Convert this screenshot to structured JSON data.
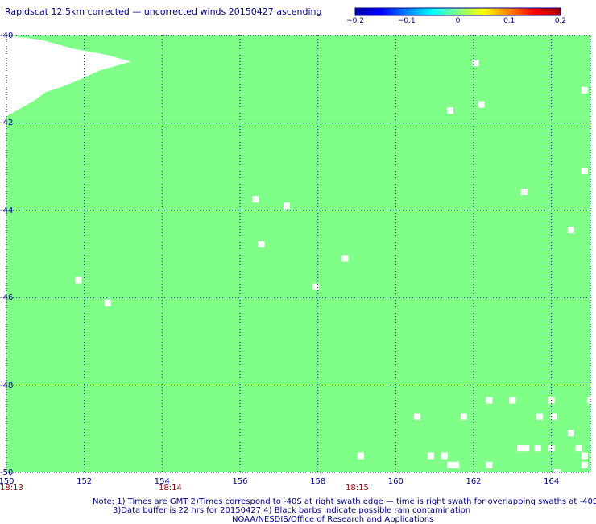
{
  "chart_data": {
    "type": "heatmap",
    "title": "Rapidscat 12.5km corrected — uncorrected winds 20150427 ascending",
    "colorbar": {
      "colors": [
        "#0000aa",
        "#0000ff",
        "#0080ff",
        "#00ffff",
        "#80ff80",
        "#ffff00",
        "#ff8000",
        "#ff0000",
        "#aa0000"
      ],
      "tick_labels": [
        "−0.2",
        "−0.1",
        "0",
        "0.1",
        "0.2"
      ],
      "range": [
        -0.2,
        0.2
      ]
    },
    "field_color": "#80ff88",
    "field_value": 0,
    "grid": true,
    "xlim": [
      150,
      165
    ],
    "ylim": [
      -50,
      -40
    ],
    "x_ticks": [
      150,
      152,
      154,
      156,
      158,
      160,
      162,
      164
    ],
    "y_ticks": [
      -40,
      -42,
      -44,
      -46,
      -48,
      -50
    ],
    "x_tick_labels": [
      "150",
      "152",
      "154",
      "156",
      "158",
      "160",
      "162",
      "164"
    ],
    "y_tick_labels": [
      "-40",
      "-42",
      "-44",
      "-46",
      "-48",
      "-50"
    ],
    "time_labels": [
      {
        "lon": 150,
        "text": "18:13"
      },
      {
        "lon": 154.2,
        "text": "18:14"
      },
      {
        "lon": 159.0,
        "text": "18:15"
      }
    ],
    "time_color": "#880000",
    "nodata_edge": [
      {
        "lat": -40.0,
        "lon": 150.0
      },
      {
        "lat": -40.1,
        "lon": 150.9
      },
      {
        "lat": -40.3,
        "lon": 151.7
      },
      {
        "lat": -40.45,
        "lon": 152.6
      },
      {
        "lat": -40.6,
        "lon": 153.2
      },
      {
        "lat": -40.8,
        "lon": 152.4
      },
      {
        "lat": -41.0,
        "lon": 151.9
      },
      {
        "lat": -41.15,
        "lon": 151.5
      },
      {
        "lat": -41.3,
        "lon": 151.0
      },
      {
        "lat": -41.5,
        "lon": 150.7
      },
      {
        "lat": -41.7,
        "lon": 150.3
      },
      {
        "lat": -41.85,
        "lon": 150.0
      }
    ],
    "missing_cells": [
      {
        "lon": 162.05,
        "lat": -40.63
      },
      {
        "lon": 161.4,
        "lat": -41.72
      },
      {
        "lon": 162.2,
        "lat": -41.58
      },
      {
        "lon": 164.85,
        "lat": -41.25
      },
      {
        "lon": 164.85,
        "lat": -43.1
      },
      {
        "lon": 163.3,
        "lat": -43.58
      },
      {
        "lon": 156.4,
        "lat": -43.75
      },
      {
        "lon": 157.2,
        "lat": -43.9
      },
      {
        "lon": 164.5,
        "lat": -44.45
      },
      {
        "lon": 156.55,
        "lat": -44.78
      },
      {
        "lon": 158.7,
        "lat": -45.1
      },
      {
        "lon": 151.85,
        "lat": -45.6
      },
      {
        "lon": 157.95,
        "lat": -45.75
      },
      {
        "lon": 152.6,
        "lat": -46.12
      },
      {
        "lon": 162.4,
        "lat": -48.35
      },
      {
        "lon": 163.0,
        "lat": -48.35
      },
      {
        "lon": 164.0,
        "lat": -48.35
      },
      {
        "lon": 165.0,
        "lat": -48.35
      },
      {
        "lon": 160.55,
        "lat": -48.72
      },
      {
        "lon": 161.75,
        "lat": -48.72
      },
      {
        "lon": 163.7,
        "lat": -48.72
      },
      {
        "lon": 164.05,
        "lat": -48.72
      },
      {
        "lon": 164.5,
        "lat": -49.1
      },
      {
        "lon": 163.2,
        "lat": -49.45
      },
      {
        "lon": 163.35,
        "lat": -49.45
      },
      {
        "lon": 163.65,
        "lat": -49.45
      },
      {
        "lon": 164.0,
        "lat": -49.45
      },
      {
        "lon": 164.7,
        "lat": -49.45
      },
      {
        "lon": 159.1,
        "lat": -49.62
      },
      {
        "lon": 160.9,
        "lat": -49.62
      },
      {
        "lon": 161.25,
        "lat": -49.62
      },
      {
        "lon": 164.85,
        "lat": -49.62
      },
      {
        "lon": 161.4,
        "lat": -49.83
      },
      {
        "lon": 161.55,
        "lat": -49.83
      },
      {
        "lon": 162.4,
        "lat": -49.83
      },
      {
        "lon": 164.85,
        "lat": -49.83
      },
      {
        "lon": 164.15,
        "lat": -50.0
      }
    ]
  },
  "notes": [
    "Note: 1) Times are GMT 2)Times correspond to -40S at right swath edge — time is right swath for overlapping swaths at -40S",
    "3)Data buffer is 22 hrs for 20150427 4) Black barbs indicate possible rain contamination",
    "NOAA/NESDIS/Office of Research and Applications"
  ]
}
